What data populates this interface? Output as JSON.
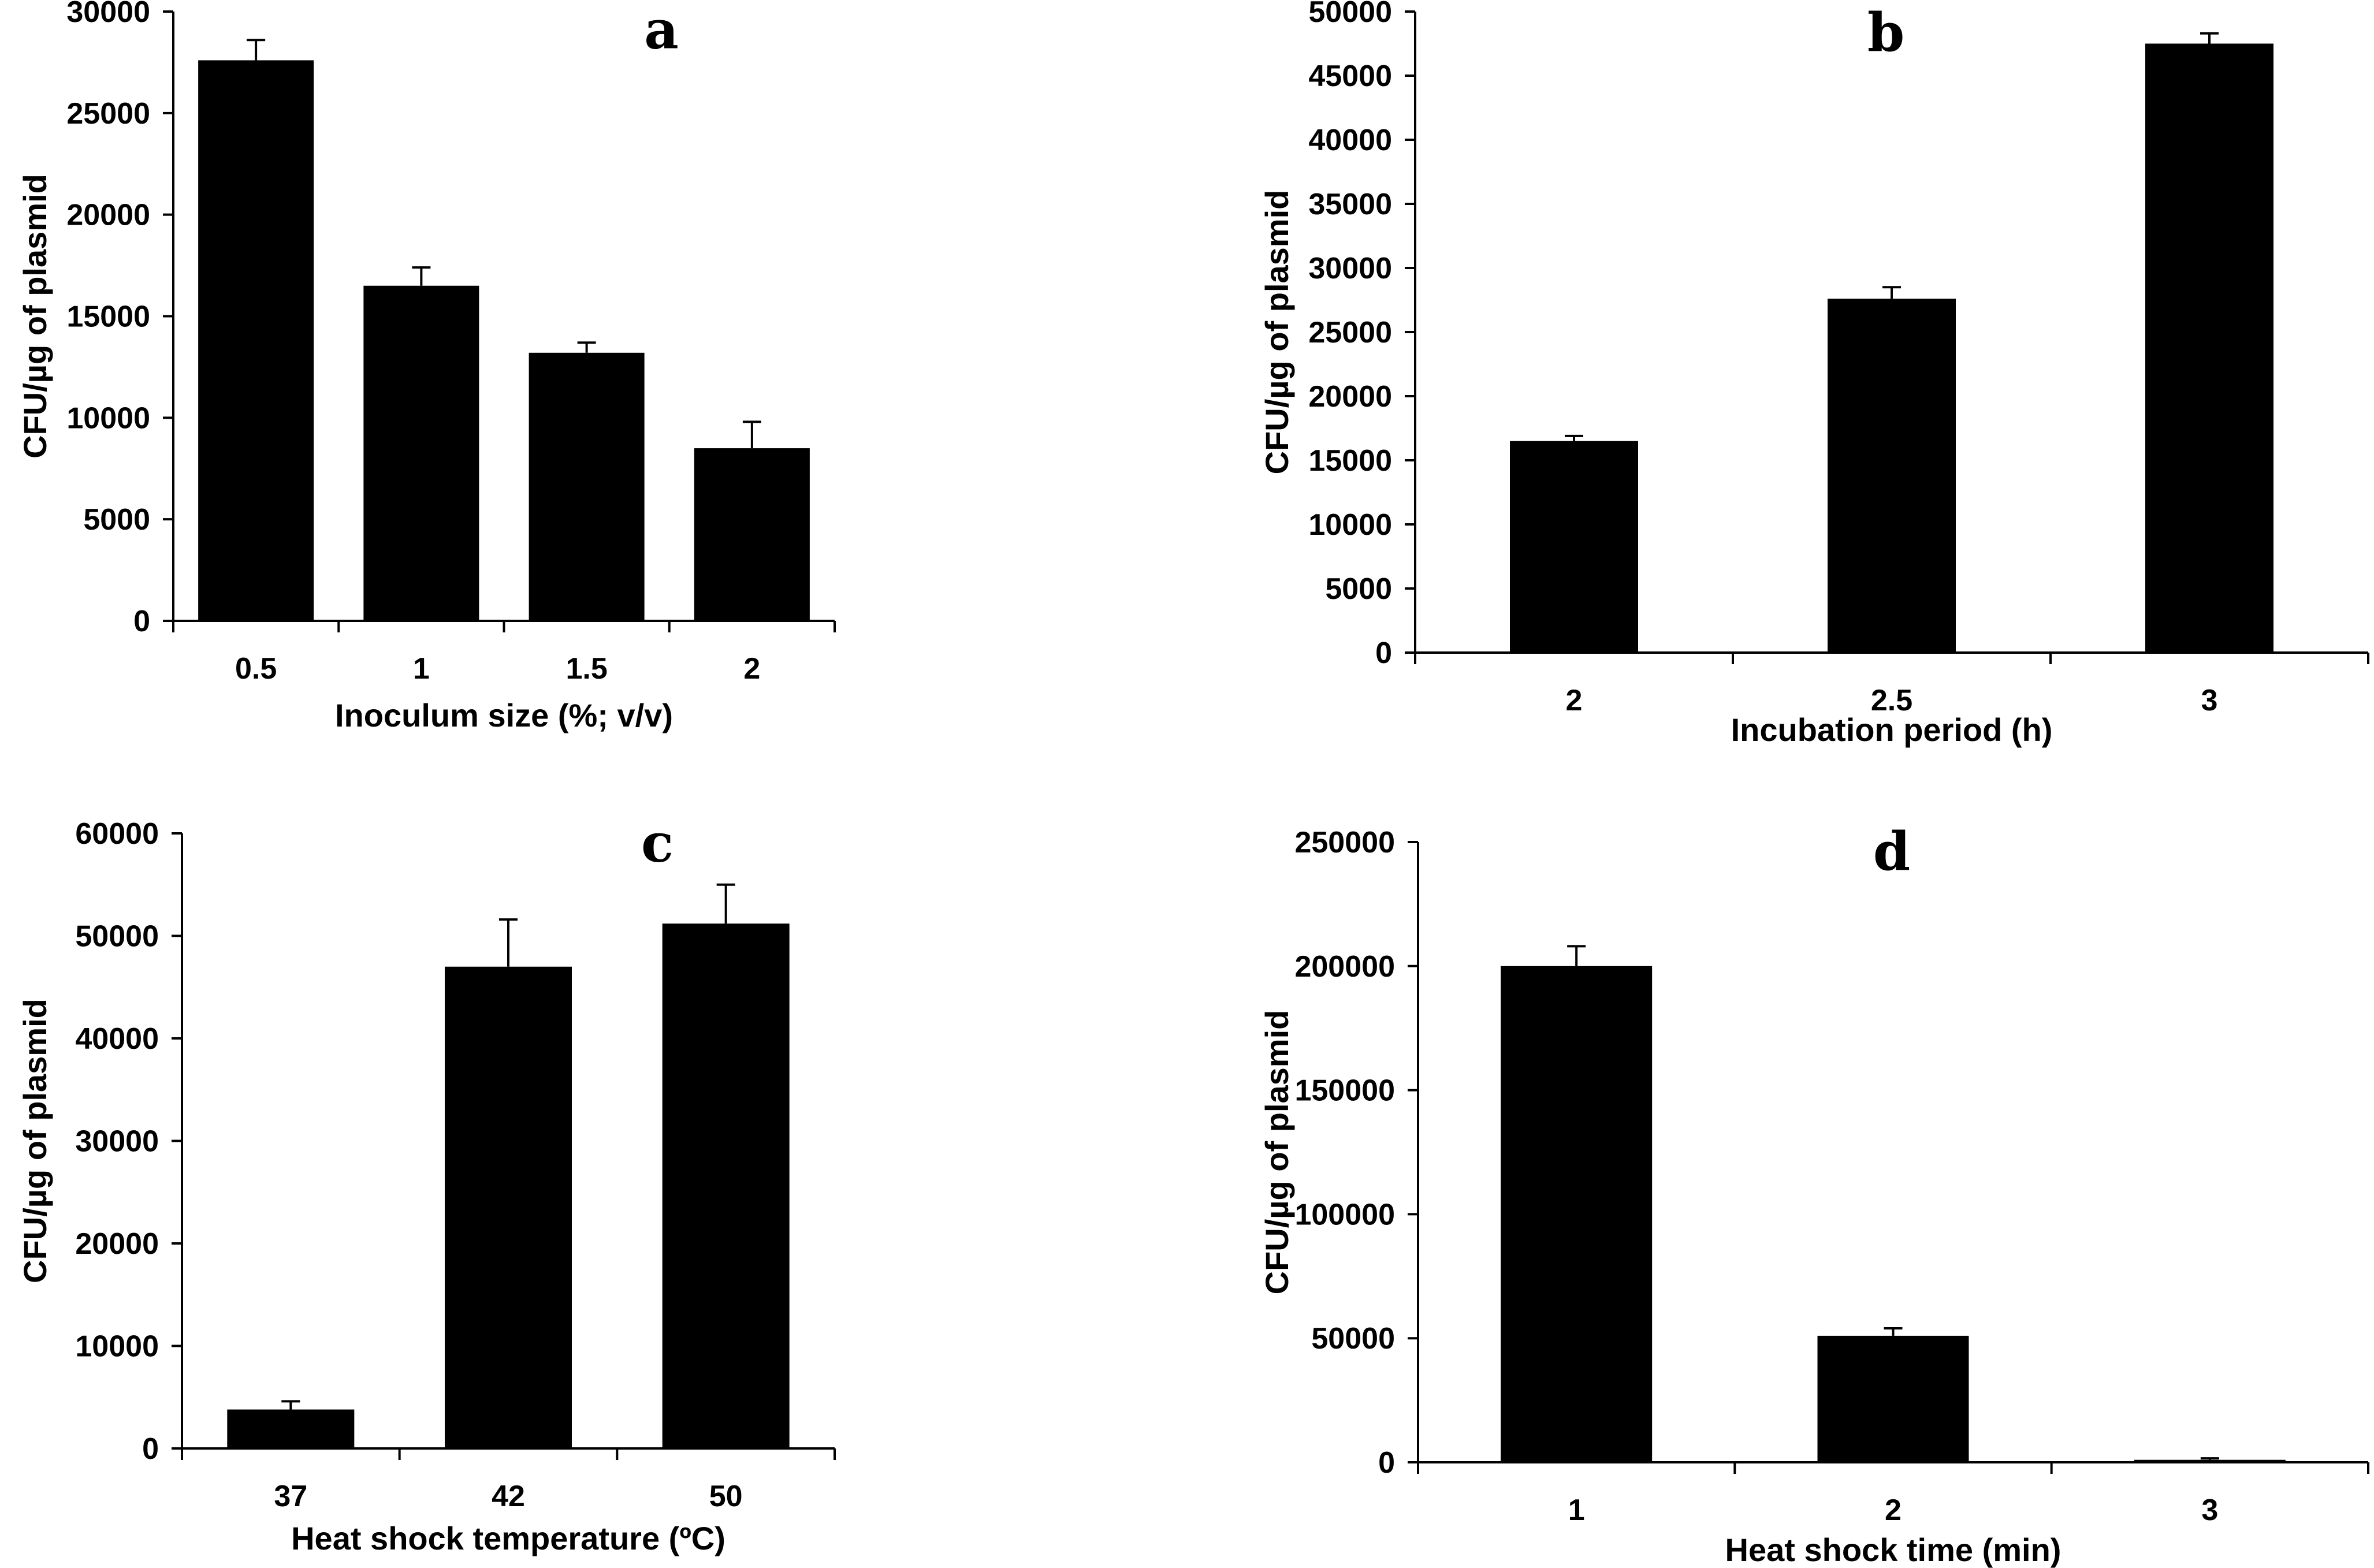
{
  "chart_data": [
    {
      "type": "bar",
      "panel": "a",
      "categories": [
        "0.5",
        "1",
        "1.5",
        "2"
      ],
      "values": [
        27600,
        16500,
        13200,
        8500
      ],
      "errors": [
        1000,
        900,
        500,
        1300
      ],
      "xlabel": "Inoculum size (%; v/v)",
      "ylabel": "CFU/µg of plasmid",
      "ylim": [
        0,
        30000
      ],
      "yticks": [
        0,
        5000,
        10000,
        15000,
        20000,
        25000,
        30000
      ],
      "grid": false,
      "bar_color": "#000000"
    },
    {
      "type": "bar",
      "panel": "b",
      "categories": [
        "2",
        "2.5",
        "3"
      ],
      "values": [
        16500,
        27600,
        47500
      ],
      "errors": [
        400,
        900,
        800
      ],
      "xlabel": "Incubation period (h)",
      "ylabel": "CFU/µg of plasmid",
      "ylim": [
        0,
        50000
      ],
      "yticks": [
        0,
        5000,
        10000,
        15000,
        20000,
        25000,
        30000,
        35000,
        40000,
        45000,
        50000
      ],
      "grid": false,
      "bar_color": "#000000"
    },
    {
      "type": "bar",
      "panel": "c",
      "categories": [
        "37",
        "42",
        "50"
      ],
      "values": [
        3800,
        47000,
        51200
      ],
      "errors": [
        800,
        4600,
        3800
      ],
      "xlabel": "Heat shock temperature (ºC)",
      "ylabel": "CFU/µg of plasmid",
      "ylim": [
        0,
        60000
      ],
      "yticks": [
        0,
        10000,
        20000,
        30000,
        40000,
        50000,
        60000
      ],
      "grid": false,
      "bar_color": "#000000"
    },
    {
      "type": "bar",
      "panel": "d",
      "categories": [
        "1",
        "2",
        "3"
      ],
      "values": [
        200000,
        51000,
        1000
      ],
      "errors": [
        8000,
        3000,
        600
      ],
      "xlabel": "Heat shock time (min)",
      "ylabel": "CFU/µg of plasmid",
      "ylim": [
        0,
        250000
      ],
      "yticks": [
        0,
        50000,
        100000,
        150000,
        200000,
        250000
      ],
      "grid": false,
      "bar_color": "#000000"
    }
  ]
}
